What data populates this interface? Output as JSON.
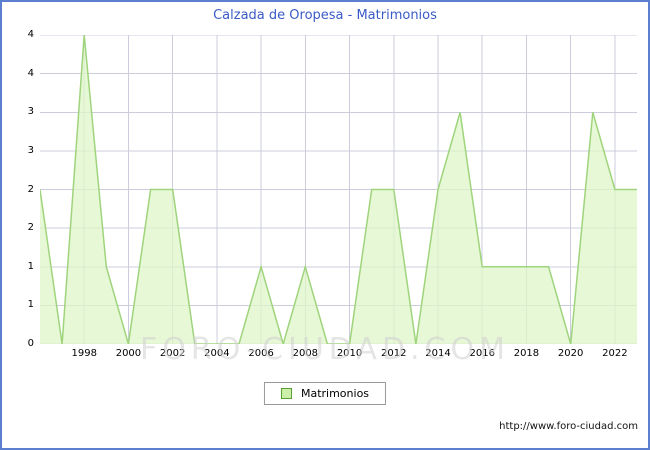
{
  "title": "Calzada de Oropesa - Matrimonios",
  "legend": {
    "label": "Matrimonios"
  },
  "watermark": "FORO-CIUDAD.COM",
  "footer": {
    "url": "http://www.foro-ciudad.com"
  },
  "colors": {
    "frame_border": "#5d7fd0",
    "title_text": "#3a5bc7",
    "grid": "#ccccdd",
    "area_fill": "#dff5c8",
    "area_line": "#9fd47d",
    "legend_swatch_fill": "#ccf0aa",
    "legend_swatch_border": "#5a9e32",
    "axis_text": "#000000",
    "watermark_text": "#d0d0d0"
  },
  "chart_data": {
    "type": "area",
    "title": "Calzada de Oropesa - Matrimonios",
    "series_name": "Matrimonios",
    "x": [
      1996,
      1997,
      1998,
      1999,
      2000,
      2001,
      2002,
      2003,
      2004,
      2005,
      2006,
      2007,
      2008,
      2009,
      2010,
      2011,
      2012,
      2013,
      2014,
      2015,
      2016,
      2017,
      2018,
      2019,
      2020,
      2021,
      2022,
      2023
    ],
    "values": [
      2,
      0,
      4,
      1,
      0,
      2,
      2,
      0,
      0,
      0,
      1,
      0,
      1,
      0,
      0,
      2,
      2,
      0,
      2,
      3,
      1,
      1,
      1,
      1,
      0,
      3,
      2,
      2
    ],
    "ylim": [
      0,
      4
    ],
    "ytick_step": 0.5,
    "yticklabels_bottom_to_top": [
      "0",
      "1",
      "1",
      "2",
      "2",
      "3",
      "3",
      "4",
      "4"
    ],
    "xticks": [
      1998,
      2000,
      2002,
      2004,
      2006,
      2008,
      2010,
      2012,
      2014,
      2016,
      2018,
      2020,
      2022
    ],
    "grid": true,
    "legend_position": "bottom-center"
  }
}
